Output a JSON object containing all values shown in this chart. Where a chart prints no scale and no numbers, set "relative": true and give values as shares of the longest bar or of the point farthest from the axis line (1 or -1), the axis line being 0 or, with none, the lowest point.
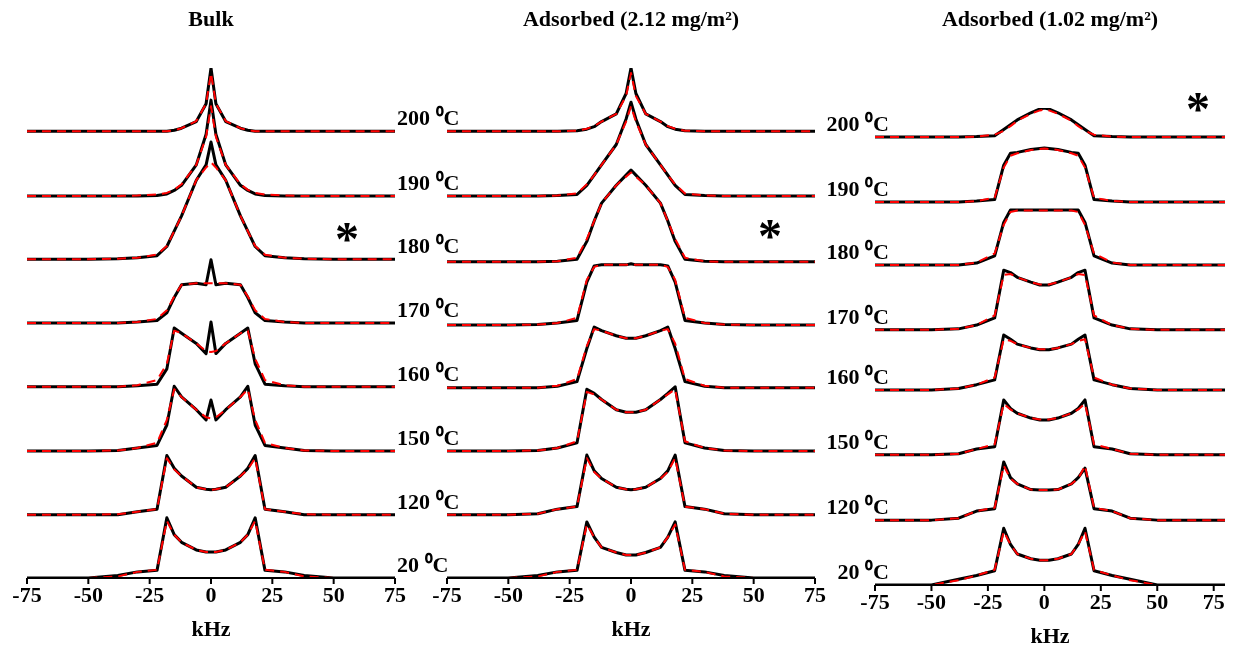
{
  "chart_data": [
    {
      "type": "line",
      "title": "Bulk",
      "xlabel": "kHz",
      "relative": true,
      "tick_labels": "x",
      "xlim": [
        -75,
        75
      ],
      "xticks": [
        -75,
        -50,
        -25,
        0,
        25,
        50,
        75
      ],
      "x": [
        -75,
        -50,
        -38,
        -30,
        -22,
        -18,
        -15,
        -12,
        -6,
        -2,
        0,
        2,
        6,
        12,
        15,
        18,
        22,
        30,
        38,
        50,
        75
      ],
      "annotations": [
        "*"
      ],
      "series": [
        {
          "color": "#ff0000",
          "line_style": "dashed",
          "values": [
            0.876,
            0.876,
            0.876,
            0.876,
            0.876,
            0.876,
            0.878,
            0.882,
            0.896,
            0.93,
            0.99,
            0.93,
            0.896,
            0.882,
            0.878,
            0.876,
            0.876,
            0.876,
            0.876,
            0.876,
            0.876
          ]
        },
        {
          "name": "200 ⁰C",
          "color": "#000000",
          "line_style": "solid",
          "values": [
            0.876,
            0.876,
            0.876,
            0.876,
            0.876,
            0.876,
            0.878,
            0.882,
            0.895,
            0.93,
            1.0,
            0.93,
            0.895,
            0.882,
            0.878,
            0.876,
            0.876,
            0.876,
            0.876,
            0.876,
            0.876
          ]
        },
        {
          "color": "#ff0000",
          "line_style": "dashed",
          "values": [
            0.749,
            0.749,
            0.749,
            0.75,
            0.752,
            0.755,
            0.761,
            0.772,
            0.81,
            0.865,
            0.925,
            0.865,
            0.81,
            0.772,
            0.761,
            0.755,
            0.752,
            0.75,
            0.749,
            0.749,
            0.749
          ]
        },
        {
          "name": "190 ⁰C",
          "color": "#000000",
          "line_style": "solid",
          "values": [
            0.749,
            0.749,
            0.749,
            0.749,
            0.75,
            0.753,
            0.76,
            0.77,
            0.81,
            0.87,
            0.937,
            0.87,
            0.81,
            0.77,
            0.76,
            0.753,
            0.75,
            0.749,
            0.749,
            0.749,
            0.749
          ]
        },
        {
          "color": "#ff0000",
          "line_style": "dashed",
          "values": [
            0.625,
            0.625,
            0.626,
            0.628,
            0.634,
            0.651,
            0.68,
            0.71,
            0.78,
            0.805,
            0.815,
            0.805,
            0.78,
            0.71,
            0.68,
            0.651,
            0.634,
            0.628,
            0.626,
            0.625,
            0.625
          ]
        },
        {
          "name": "180 ⁰C",
          "color": "#000000",
          "line_style": "solid",
          "values": [
            0.625,
            0.625,
            0.626,
            0.628,
            0.632,
            0.65,
            0.68,
            0.71,
            0.78,
            0.81,
            0.855,
            0.81,
            0.78,
            0.71,
            0.68,
            0.65,
            0.632,
            0.628,
            0.626,
            0.625,
            0.625
          ]
        },
        {
          "color": "#ff0000",
          "line_style": "dashed",
          "values": [
            0.5,
            0.5,
            0.5,
            0.502,
            0.508,
            0.525,
            0.552,
            0.575,
            0.578,
            0.578,
            0.578,
            0.578,
            0.578,
            0.575,
            0.552,
            0.525,
            0.508,
            0.502,
            0.5,
            0.5,
            0.5
          ]
        },
        {
          "name": "170 ⁰C",
          "color": "#000000",
          "line_style": "solid",
          "values": [
            0.5,
            0.5,
            0.5,
            0.502,
            0.505,
            0.52,
            0.55,
            0.575,
            0.578,
            0.575,
            0.624,
            0.575,
            0.578,
            0.575,
            0.55,
            0.52,
            0.505,
            0.502,
            0.5,
            0.5,
            0.5
          ]
        },
        {
          "color": "#ff0000",
          "line_style": "dashed",
          "values": [
            0.375,
            0.375,
            0.375,
            0.378,
            0.388,
            0.42,
            0.485,
            0.48,
            0.46,
            0.445,
            0.443,
            0.445,
            0.46,
            0.48,
            0.485,
            0.43,
            0.388,
            0.378,
            0.375,
            0.375,
            0.375
          ]
        },
        {
          "name": "160 ⁰C",
          "color": "#000000",
          "line_style": "solid",
          "values": [
            0.375,
            0.375,
            0.375,
            0.377,
            0.38,
            0.41,
            0.49,
            0.48,
            0.46,
            0.44,
            0.502,
            0.44,
            0.46,
            0.48,
            0.49,
            0.42,
            0.38,
            0.377,
            0.375,
            0.375,
            0.375
          ]
        },
        {
          "color": "#ff0000",
          "line_style": "dashed",
          "values": [
            0.249,
            0.249,
            0.25,
            0.255,
            0.265,
            0.31,
            0.37,
            0.355,
            0.33,
            0.315,
            0.313,
            0.315,
            0.33,
            0.355,
            0.37,
            0.31,
            0.265,
            0.255,
            0.25,
            0.249,
            0.249
          ]
        },
        {
          "name": "150 ⁰C",
          "color": "#000000",
          "line_style": "solid",
          "values": [
            0.249,
            0.249,
            0.25,
            0.255,
            0.26,
            0.3,
            0.376,
            0.355,
            0.33,
            0.31,
            0.349,
            0.31,
            0.33,
            0.355,
            0.376,
            0.3,
            0.26,
            0.255,
            0.25,
            0.249,
            0.249
          ]
        },
        {
          "color": "#ff0000",
          "line_style": "dashed",
          "values": [
            0.124,
            0.124,
            0.125,
            0.13,
            0.135,
            0.235,
            0.213,
            0.2,
            0.178,
            0.174,
            0.173,
            0.174,
            0.178,
            0.2,
            0.213,
            0.235,
            0.135,
            0.13,
            0.125,
            0.124,
            0.124
          ]
        },
        {
          "name": "120 ⁰C",
          "color": "#000000",
          "line_style": "solid",
          "values": [
            0.124,
            0.124,
            0.124,
            0.13,
            0.135,
            0.24,
            0.215,
            0.2,
            0.178,
            0.174,
            0.173,
            0.174,
            0.178,
            0.2,
            0.215,
            0.24,
            0.135,
            0.13,
            0.124,
            0.124,
            0.124
          ]
        },
        {
          "color": "#ff0000",
          "line_style": "dashed",
          "values": [
            null,
            0,
            0.003,
            0.012,
            0.016,
            0.112,
            0.085,
            0.07,
            0.055,
            0.051,
            0.051,
            0.051,
            0.055,
            0.07,
            0.085,
            0.112,
            0.016,
            0.012,
            0.003,
            0,
            null
          ]
        },
        {
          "name": "20 ⁰C",
          "color": "#000000",
          "line_style": "solid",
          "values": [
            0,
            0,
            0.005,
            0.012,
            0.015,
            0.118,
            0.085,
            0.07,
            0.055,
            0.051,
            0.051,
            0.051,
            0.055,
            0.07,
            0.085,
            0.118,
            0.015,
            0.012,
            0.005,
            0,
            0
          ]
        }
      ]
    },
    {
      "type": "line",
      "title": "Adsorbed (2.12 mg/m²)",
      "xlabel": "kHz",
      "relative": true,
      "tick_labels": "x",
      "xlim": [
        -75,
        75
      ],
      "xticks": [
        -75,
        -50,
        -25,
        0,
        25,
        50,
        75
      ],
      "x": [
        -75,
        -50,
        -38,
        -30,
        -22,
        -18,
        -15,
        -12,
        -6,
        -2,
        0,
        2,
        6,
        12,
        15,
        18,
        22,
        30,
        38,
        50,
        75
      ],
      "annotations": [
        "*"
      ],
      "series": [
        {
          "color": "#ff0000",
          "line_style": "dashed",
          "values": [
            0.876,
            0.876,
            0.876,
            0.876,
            0.877,
            0.881,
            0.886,
            0.895,
            0.91,
            0.945,
            0.99,
            0.945,
            0.91,
            0.895,
            0.886,
            0.881,
            0.877,
            0.876,
            0.876,
            0.876,
            0.876
          ]
        },
        {
          "color": "#000000",
          "line_style": "solid",
          "values": [
            0.876,
            0.876,
            0.876,
            0.876,
            0.877,
            0.88,
            0.885,
            0.895,
            0.91,
            0.95,
            1.0,
            0.95,
            0.91,
            0.895,
            0.885,
            0.88,
            0.877,
            0.876,
            0.876,
            0.876,
            0.876
          ]
        },
        {
          "color": "#ff0000",
          "line_style": "dashed",
          "values": [
            0.749,
            0.749,
            0.749,
            0.75,
            0.754,
            0.772,
            0.79,
            0.81,
            0.85,
            0.895,
            0.925,
            0.895,
            0.85,
            0.81,
            0.79,
            0.772,
            0.754,
            0.75,
            0.749,
            0.749,
            0.749
          ]
        },
        {
          "color": "#000000",
          "line_style": "solid",
          "values": [
            0.749,
            0.749,
            0.749,
            0.75,
            0.752,
            0.77,
            0.79,
            0.81,
            0.85,
            0.9,
            0.933,
            0.9,
            0.85,
            0.81,
            0.79,
            0.77,
            0.752,
            0.75,
            0.749,
            0.749,
            0.749
          ]
        },
        {
          "color": "#ff0000",
          "line_style": "dashed",
          "values": [
            0.62,
            0.62,
            0.62,
            0.621,
            0.628,
            0.665,
            0.7,
            0.735,
            0.77,
            0.787,
            0.795,
            0.787,
            0.77,
            0.735,
            0.7,
            0.665,
            0.628,
            0.621,
            0.62,
            0.62,
            0.62
          ]
        },
        {
          "color": "#000000",
          "line_style": "solid",
          "values": [
            0.62,
            0.62,
            0.62,
            0.621,
            0.625,
            0.66,
            0.7,
            0.735,
            0.77,
            0.79,
            0.8,
            0.79,
            0.77,
            0.735,
            0.7,
            0.66,
            0.625,
            0.621,
            0.62,
            0.62,
            0.62
          ]
        },
        {
          "color": "#ff0000",
          "line_style": "dashed",
          "values": [
            0.496,
            0.496,
            0.497,
            0.5,
            0.51,
            0.585,
            0.61,
            0.614,
            0.614,
            0.614,
            0.614,
            0.614,
            0.614,
            0.614,
            0.61,
            0.585,
            0.51,
            0.5,
            0.497,
            0.496,
            0.496
          ]
        },
        {
          "color": "#000000",
          "line_style": "solid",
          "values": [
            0.496,
            0.496,
            0.497,
            0.5,
            0.505,
            0.58,
            0.612,
            0.614,
            0.614,
            0.614,
            0.616,
            0.614,
            0.614,
            0.614,
            0.612,
            0.58,
            0.505,
            0.5,
            0.497,
            0.496,
            0.496
          ]
        },
        {
          "color": "#ff0000",
          "line_style": "dashed",
          "values": [
            0.373,
            0.373,
            0.373,
            0.377,
            0.39,
            0.455,
            0.488,
            0.485,
            0.475,
            0.47,
            0.47,
            0.47,
            0.475,
            0.485,
            0.488,
            0.46,
            0.39,
            0.377,
            0.373,
            0.373,
            0.373
          ]
        },
        {
          "color": "#000000",
          "line_style": "solid",
          "values": [
            0.373,
            0.373,
            0.373,
            0.376,
            0.385,
            0.45,
            0.492,
            0.485,
            0.475,
            0.47,
            0.47,
            0.47,
            0.475,
            0.485,
            0.492,
            0.45,
            0.385,
            0.376,
            0.373,
            0.373,
            0.373
          ]
        },
        {
          "color": "#ff0000",
          "line_style": "dashed",
          "values": [
            0.249,
            0.249,
            0.25,
            0.255,
            0.268,
            0.365,
            0.36,
            0.35,
            0.33,
            0.325,
            0.325,
            0.325,
            0.33,
            0.35,
            0.36,
            0.37,
            0.268,
            0.255,
            0.25,
            0.249,
            0.249
          ]
        },
        {
          "color": "#000000",
          "line_style": "solid",
          "values": [
            0.249,
            0.249,
            0.25,
            0.255,
            0.265,
            0.37,
            0.362,
            0.35,
            0.33,
            0.325,
            0.325,
            0.325,
            0.33,
            0.35,
            0.362,
            0.375,
            0.265,
            0.255,
            0.25,
            0.249,
            0.249
          ]
        },
        {
          "color": "#ff0000",
          "line_style": "dashed",
          "values": [
            0.124,
            0.124,
            0.126,
            0.135,
            0.14,
            0.235,
            0.208,
            0.195,
            0.178,
            0.174,
            0.173,
            0.174,
            0.178,
            0.195,
            0.208,
            0.235,
            0.14,
            0.135,
            0.126,
            0.124,
            0.124
          ]
        },
        {
          "color": "#000000",
          "line_style": "solid",
          "values": [
            0.124,
            0.124,
            0.126,
            0.135,
            0.14,
            0.241,
            0.21,
            0.195,
            0.178,
            0.174,
            0.173,
            0.174,
            0.178,
            0.195,
            0.21,
            0.241,
            0.14,
            0.135,
            0.126,
            0.124,
            0.124
          ]
        },
        {
          "color": "#ff0000",
          "line_style": "dashed",
          "values": [
            null,
            0,
            0.003,
            0.012,
            0.016,
            0.105,
            0.08,
            0.06,
            0.05,
            0.045,
            0.045,
            0.045,
            0.05,
            0.06,
            0.08,
            0.105,
            0.016,
            0.012,
            0.003,
            0,
            null
          ]
        },
        {
          "color": "#000000",
          "line_style": "solid",
          "values": [
            0,
            0,
            0.005,
            0.012,
            0.015,
            0.11,
            0.08,
            0.06,
            0.05,
            0.045,
            0.045,
            0.045,
            0.05,
            0.06,
            0.08,
            0.11,
            0.015,
            0.012,
            0.005,
            0,
            0
          ]
        }
      ]
    },
    {
      "type": "line",
      "title": "Adsorbed (1.02 mg/m²)",
      "xlabel": "kHz",
      "relative": true,
      "tick_labels": "x",
      "xlim": [
        -75,
        80
      ],
      "xticks": [
        -75,
        -50,
        -25,
        0,
        25,
        50,
        75
      ],
      "x": [
        -75,
        -50,
        -38,
        -30,
        -22,
        -18,
        -15,
        -12,
        -6,
        -2,
        0,
        2,
        6,
        12,
        15,
        18,
        22,
        30,
        38,
        50,
        80
      ],
      "annotations": [
        "*"
      ],
      "series": [
        {
          "color": "#ff0000",
          "line_style": "dashed",
          "values": [
            0.939,
            0.939,
            0.939,
            0.94,
            0.944,
            0.952,
            0.962,
            0.973,
            0.988,
            0.995,
            0.996,
            0.995,
            0.988,
            0.973,
            0.962,
            0.952,
            0.944,
            0.94,
            0.939,
            0.939,
            0.939
          ]
        },
        {
          "name": "200 ⁰C",
          "color": "#000000",
          "line_style": "solid",
          "values": [
            0.939,
            0.939,
            0.939,
            0.94,
            0.942,
            0.955,
            0.965,
            0.975,
            0.99,
            0.998,
            1.0,
            0.998,
            0.99,
            0.975,
            0.965,
            0.955,
            0.942,
            0.94,
            0.939,
            0.939,
            0.939
          ]
        },
        {
          "color": "#ff0000",
          "line_style": "dashed",
          "values": [
            0.803,
            0.803,
            0.803,
            0.805,
            0.812,
            0.875,
            0.9,
            0.905,
            0.912,
            0.914,
            0.915,
            0.914,
            0.912,
            0.905,
            0.9,
            0.875,
            0.812,
            0.805,
            0.803,
            0.803,
            0.803
          ]
        },
        {
          "name": "190 ⁰C",
          "color": "#000000",
          "line_style": "solid",
          "values": [
            0.803,
            0.803,
            0.803,
            0.805,
            0.808,
            0.88,
            0.905,
            0.907,
            0.913,
            0.915,
            0.916,
            0.915,
            0.913,
            0.907,
            0.905,
            0.88,
            0.808,
            0.805,
            0.803,
            0.803,
            0.803
          ]
        },
        {
          "color": "#ff0000",
          "line_style": "dashed",
          "values": [
            0.671,
            0.671,
            0.671,
            0.676,
            0.695,
            0.755,
            0.782,
            0.785,
            0.785,
            0.785,
            0.785,
            0.785,
            0.785,
            0.785,
            0.782,
            0.755,
            0.695,
            0.676,
            0.671,
            0.671,
            0.671
          ]
        },
        {
          "name": "180 ⁰C",
          "color": "#000000",
          "line_style": "solid",
          "values": [
            0.671,
            0.671,
            0.671,
            0.675,
            0.69,
            0.76,
            0.786,
            0.786,
            0.786,
            0.786,
            0.786,
            0.786,
            0.786,
            0.786,
            0.786,
            0.76,
            0.69,
            0.675,
            0.671,
            0.671,
            0.671
          ]
        },
        {
          "color": "#ff0000",
          "line_style": "dashed",
          "values": [
            0.535,
            0.535,
            0.537,
            0.545,
            0.565,
            0.65,
            0.652,
            0.645,
            0.635,
            0.63,
            0.63,
            0.63,
            0.635,
            0.645,
            0.652,
            0.65,
            0.565,
            0.545,
            0.537,
            0.535,
            0.535
          ]
        },
        {
          "name": "170 ⁰C",
          "color": "#000000",
          "line_style": "solid",
          "values": [
            0.535,
            0.535,
            0.537,
            0.545,
            0.56,
            0.66,
            0.655,
            0.645,
            0.635,
            0.629,
            0.629,
            0.629,
            0.635,
            0.645,
            0.655,
            0.66,
            0.56,
            0.545,
            0.537,
            0.535,
            0.535
          ]
        },
        {
          "color": "#ff0000",
          "line_style": "dashed",
          "values": [
            0.409,
            0.409,
            0.412,
            0.42,
            0.435,
            0.515,
            0.512,
            0.505,
            0.497,
            0.494,
            0.494,
            0.494,
            0.497,
            0.505,
            0.512,
            0.515,
            0.435,
            0.42,
            0.412,
            0.409,
            0.409
          ]
        },
        {
          "name": "160 ⁰C",
          "color": "#000000",
          "line_style": "solid",
          "values": [
            0.409,
            0.409,
            0.412,
            0.42,
            0.43,
            0.524,
            0.515,
            0.505,
            0.497,
            0.493,
            0.493,
            0.493,
            0.497,
            0.505,
            0.515,
            0.524,
            0.43,
            0.42,
            0.412,
            0.409,
            0.409
          ]
        },
        {
          "color": "#ff0000",
          "line_style": "dashed",
          "values": [
            0.273,
            0.273,
            0.275,
            0.285,
            0.295,
            0.38,
            0.368,
            0.36,
            0.35,
            0.347,
            0.347,
            0.347,
            0.35,
            0.36,
            0.368,
            0.38,
            0.295,
            0.285,
            0.275,
            0.273,
            0.273
          ]
        },
        {
          "name": "150 ⁰C",
          "color": "#000000",
          "line_style": "solid",
          "values": [
            0.273,
            0.273,
            0.275,
            0.285,
            0.29,
            0.388,
            0.37,
            0.36,
            0.35,
            0.346,
            0.346,
            0.346,
            0.35,
            0.36,
            0.37,
            0.388,
            0.29,
            0.285,
            0.275,
            0.273,
            0.273
          ]
        },
        {
          "color": "#ff0000",
          "line_style": "dashed",
          "values": [
            0.136,
            0.136,
            0.14,
            0.155,
            0.162,
            0.25,
            0.223,
            0.212,
            0.2,
            0.199,
            0.199,
            0.199,
            0.2,
            0.212,
            0.223,
            0.25,
            0.162,
            0.155,
            0.14,
            0.136,
            0.136
          ]
        },
        {
          "name": "120 ⁰C",
          "color": "#000000",
          "line_style": "solid",
          "values": [
            0.136,
            0.136,
            0.14,
            0.155,
            0.16,
            0.258,
            0.225,
            0.212,
            0.2,
            0.199,
            0.199,
            0.199,
            0.2,
            0.212,
            0.225,
            0.245,
            0.16,
            0.155,
            0.14,
            0.136,
            0.136
          ]
        },
        {
          "color": "#ff0000",
          "line_style": "dashed",
          "values": [
            0,
            0,
            0.01,
            0.02,
            0.032,
            0.112,
            0.085,
            0.065,
            0.055,
            0.052,
            0.052,
            0.052,
            0.055,
            0.065,
            0.085,
            0.112,
            0.032,
            0.02,
            0.01,
            0,
            0
          ]
        },
        {
          "name": "20 ⁰C",
          "color": "#000000",
          "line_style": "solid",
          "values": [
            0,
            0,
            0.012,
            0.02,
            0.03,
            0.119,
            0.085,
            0.065,
            0.055,
            0.052,
            0.052,
            0.052,
            0.055,
            0.065,
            0.085,
            0.119,
            0.03,
            0.02,
            0.012,
            0,
            0
          ]
        }
      ]
    }
  ]
}
